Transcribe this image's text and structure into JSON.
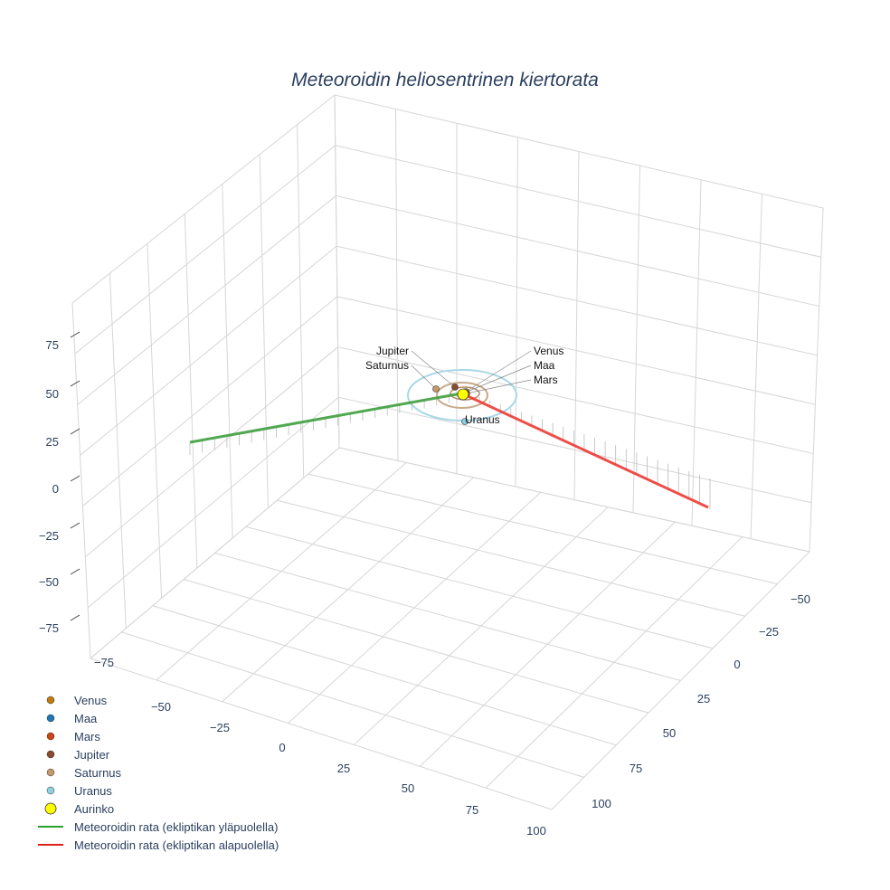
{
  "chart_data": {
    "type": "scatter3d",
    "title": "Meteoroidin heliosentrinen kiertorata",
    "axes": {
      "x": {
        "ticks": [
          "−75",
          "−50",
          "−25",
          "0",
          "25",
          "50",
          "75",
          "100"
        ],
        "range": [
          -85,
          105
        ]
      },
      "y": {
        "ticks": [
          "−50",
          "−25",
          "0",
          "25",
          "50",
          "75",
          "100"
        ],
        "range": [
          -60,
          110
        ]
      },
      "z": {
        "ticks": [
          "75",
          "50",
          "25",
          "0",
          "−25",
          "−50",
          "−75"
        ],
        "range": [
          -85,
          85
        ]
      }
    },
    "planets": [
      {
        "name": "Venus",
        "color": "#c07a10",
        "label": "Venus"
      },
      {
        "name": "Maa",
        "color": "#1f77b4",
        "label": "Maa"
      },
      {
        "name": "Mars",
        "color": "#cc4411",
        "label": "Mars"
      },
      {
        "name": "Jupiter",
        "color": "#8b4a2b",
        "label": "Jupiter"
      },
      {
        "name": "Saturnus",
        "color": "#c49a6c",
        "label": "Saturnus"
      },
      {
        "name": "Uranus",
        "color": "#8ecfe0",
        "label": "Uranus"
      }
    ],
    "sun": {
      "name": "Aurinko",
      "color": "#ffff00"
    },
    "series": [
      {
        "name": "Meteoroidin rata (ekliptikan yläpuolella)",
        "color": "#2ca02c"
      },
      {
        "name": "Meteoroidin rata (ekliptikan alapuolella)",
        "color": "#e0201a"
      }
    ],
    "legend": {
      "placement": "bottom-left",
      "items": [
        "Venus",
        "Maa",
        "Mars",
        "Jupiter",
        "Saturnus",
        "Uranus",
        "Aurinko",
        "Meteoroidin rata (ekliptikan yläpuolella)",
        "Meteoroidin rata (ekliptikan alapuolella)"
      ]
    }
  }
}
